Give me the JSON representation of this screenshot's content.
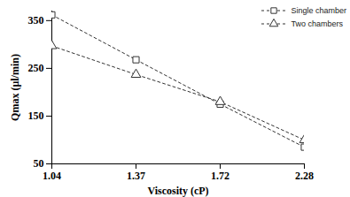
{
  "chart_data": {
    "type": "line",
    "x_label": "Viscosity (cP)",
    "y_label": "Qmax (μl/min)",
    "categories": [
      "1.04",
      "1.37",
      "1.72",
      "2.28"
    ],
    "series": [
      {
        "name": "Single chamber",
        "color": "#333333",
        "marker": "square",
        "line_style": "dashed",
        "values": [
          362,
          268,
          175,
          85
        ]
      },
      {
        "name": "Two chambers",
        "color": "#333333",
        "marker": "triangle",
        "line_style": "dashed",
        "values": [
          297,
          237,
          180,
          100
        ]
      }
    ],
    "ylim": [
      50,
      370
    ],
    "yticks": [
      50,
      150,
      250,
      350
    ],
    "grid": false,
    "legend": "top-right"
  }
}
